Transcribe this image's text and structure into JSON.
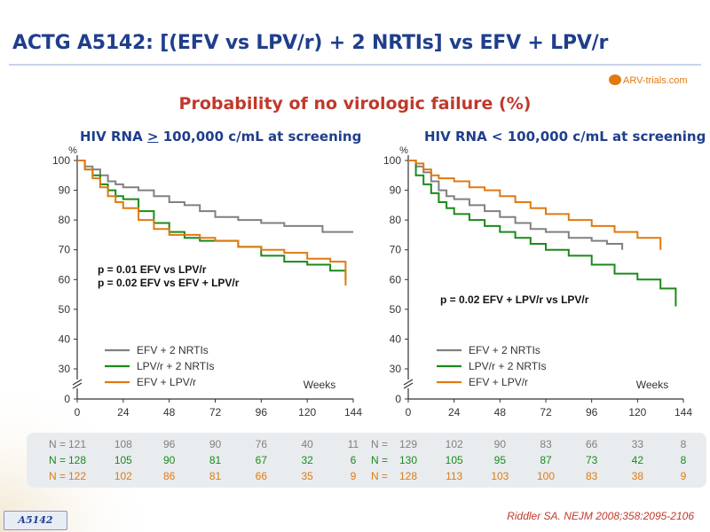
{
  "slide": {
    "title": "ACTG A5142: [(EFV vs LPV/r) + 2 NRTIs] vs EFV + LPV/r",
    "subtitle": "Probability of no virologic failure (%)",
    "citation": "Riddler SA. NEJM 2008;358:2095-2106",
    "study_tag": "A5142",
    "logo_text": "ARV-trials.com"
  },
  "colors": {
    "efv": "#808080",
    "lpvr": "#1a8a1a",
    "efv_lpvr": "#e07a10",
    "title": "#1f3e8c",
    "accent": "#c0392b"
  },
  "chart_data": [
    {
      "type": "line",
      "title_prefix": "HIV RNA ",
      "title_symbol": ">",
      "title_suffix": " 100,000 c/mL at screening",
      "ylabel": "%",
      "xlabel": "Weeks",
      "xlim": [
        0,
        144
      ],
      "ylim": [
        0,
        100
      ],
      "x_ticks": [
        0,
        24,
        48,
        72,
        96,
        120,
        144
      ],
      "y_ticks": [
        0,
        30,
        40,
        50,
        60,
        70,
        80,
        90,
        100
      ],
      "y_break": true,
      "annotation": [
        "p = 0.01 EFV vs LPV/r",
        "p = 0.02 EFV vs EFV + LPV/r"
      ],
      "legend": [
        "EFV + 2 NRTIs",
        "LPV/r + 2 NRTIs",
        "EFV + LPV/r"
      ],
      "series": [
        {
          "name": "EFV + 2 NRTIs",
          "color": "#808080",
          "x": [
            0,
            4,
            8,
            12,
            16,
            20,
            24,
            32,
            40,
            48,
            56,
            64,
            72,
            84,
            96,
            108,
            120,
            128,
            144
          ],
          "y": [
            100,
            98,
            97,
            95,
            93,
            92,
            91,
            90,
            88,
            86,
            85,
            83,
            81,
            80,
            79,
            78,
            78,
            76,
            76
          ]
        },
        {
          "name": "LPV/r + 2 NRTIs",
          "color": "#1a8a1a",
          "x": [
            0,
            4,
            8,
            12,
            16,
            20,
            24,
            32,
            40,
            48,
            56,
            64,
            72,
            84,
            96,
            108,
            120,
            132,
            140
          ],
          "y": [
            100,
            97,
            95,
            92,
            90,
            88,
            87,
            83,
            79,
            76,
            74,
            73,
            73,
            71,
            68,
            66,
            65,
            63,
            60
          ]
        },
        {
          "name": "EFV + LPV/r",
          "color": "#e07a10",
          "x": [
            0,
            4,
            8,
            12,
            16,
            20,
            24,
            32,
            40,
            48,
            56,
            64,
            72,
            84,
            96,
            108,
            120,
            132,
            140
          ],
          "y": [
            100,
            97,
            94,
            91,
            88,
            86,
            84,
            80,
            77,
            75,
            75,
            74,
            73,
            71,
            70,
            69,
            67,
            66,
            58
          ]
        }
      ],
      "n_at_risk": [
        {
          "label": "N =",
          "color": "#808080",
          "values": [
            121,
            108,
            96,
            90,
            76,
            40,
            11
          ]
        },
        {
          "label": "N =",
          "color": "#1a8a1a",
          "values": [
            128,
            105,
            90,
            81,
            67,
            32,
            6
          ]
        },
        {
          "label": "N =",
          "color": "#e07a10",
          "values": [
            122,
            102,
            86,
            81,
            66,
            35,
            9
          ]
        }
      ]
    },
    {
      "type": "line",
      "title_prefix": "HIV RNA < 100,000 c/mL at screening",
      "title_symbol": "",
      "title_suffix": "",
      "ylabel": "%",
      "xlabel": "Weeks",
      "xlim": [
        0,
        144
      ],
      "ylim": [
        0,
        100
      ],
      "x_ticks": [
        0,
        24,
        48,
        72,
        96,
        120,
        144
      ],
      "y_ticks": [
        0,
        30,
        40,
        50,
        60,
        70,
        80,
        90,
        100
      ],
      "y_break": true,
      "annotation": [
        "p = 0.02 EFV + LPV/r vs LPV/r"
      ],
      "legend": [
        "EFV + 2 NRTIs",
        "LPV/r + 2 NRTIs",
        "EFV + LPV/r"
      ],
      "series": [
        {
          "name": "EFV + 2 NRTIs",
          "color": "#808080",
          "x": [
            0,
            4,
            8,
            12,
            16,
            20,
            24,
            32,
            40,
            48,
            56,
            64,
            72,
            84,
            96,
            104,
            112
          ],
          "y": [
            100,
            98,
            96,
            93,
            90,
            88,
            87,
            85,
            83,
            81,
            79,
            77,
            76,
            74,
            73,
            72,
            70
          ]
        },
        {
          "name": "LPV/r + 2 NRTIs",
          "color": "#1a8a1a",
          "x": [
            0,
            4,
            8,
            12,
            16,
            20,
            24,
            32,
            40,
            48,
            56,
            64,
            72,
            84,
            96,
            108,
            120,
            132,
            140
          ],
          "y": [
            100,
            95,
            92,
            89,
            86,
            84,
            82,
            80,
            78,
            76,
            74,
            72,
            70,
            68,
            65,
            62,
            60,
            57,
            51
          ]
        },
        {
          "name": "EFV + LPV/r",
          "color": "#e07a10",
          "x": [
            0,
            4,
            8,
            12,
            16,
            24,
            32,
            40,
            48,
            56,
            64,
            72,
            84,
            96,
            108,
            120,
            132
          ],
          "y": [
            100,
            99,
            97,
            95,
            94,
            93,
            91,
            90,
            88,
            86,
            84,
            82,
            80,
            78,
            76,
            74,
            70
          ]
        }
      ],
      "n_at_risk": [
        {
          "label": "N =",
          "color": "#808080",
          "values": [
            129,
            102,
            90,
            83,
            66,
            33,
            8
          ]
        },
        {
          "label": "N =",
          "color": "#1a8a1a",
          "values": [
            130,
            105,
            95,
            87,
            73,
            42,
            8
          ]
        },
        {
          "label": "N =",
          "color": "#e07a10",
          "values": [
            128,
            113,
            103,
            100,
            83,
            38,
            9
          ]
        }
      ]
    }
  ]
}
